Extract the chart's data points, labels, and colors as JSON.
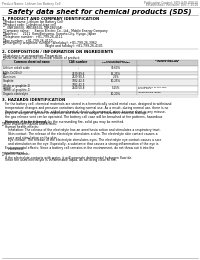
{
  "top_left_text": "Product Name: Lithium Ion Battery Cell",
  "top_right_line1": "Publication Control: SDS-048-00610",
  "top_right_line2": "Established / Revision: Dec.7.2016",
  "main_title": "Safety data sheet for chemical products (SDS)",
  "section1_title": "1. PRODUCT AND COMPANY IDENTIFICATION",
  "s1_items": [
    "・Product name: Lithium Ion Battery Cell",
    "・Product code: Cylindrical-type cell",
    "    (INR18650J, INR18650L, INR18650A)",
    "・Company name:     Sanyo Electric Co., Ltd., Mobile Energy Company",
    "・Address:     2221  Kamikoriyama, Sumoto-City, Hyogo, Japan",
    "・Telephone number:  +81-799-26-4111",
    "・Fax number:  +81-799-26-4120",
    "・Emergency telephone number (Weekday): +81-799-26-3962",
    "                                          (Night and holiday): +81-799-26-4101"
  ],
  "section2_title": "2. COMPOSITION / INFORMATION ON INGREDIENTS",
  "s2_intro": "・Substance or preparation: Preparation",
  "s2_sub": "・Information about the chemical nature of product:",
  "table_headers": [
    "Common chemical name",
    "CAS number",
    "Concentration /\nConcentration range",
    "Classification and\nhazard labeling"
  ],
  "table_rows": [
    [
      "Lithium cobalt oxide\n(LiMn-CoO2(s))",
      "-",
      "30-60%",
      "-"
    ],
    [
      "Iron",
      "7439-89-6",
      "15-25%",
      "-"
    ],
    [
      "Aluminum",
      "7429-90-5",
      "2-5%",
      "-"
    ],
    [
      "Graphite\n(Flake or graphite-1)\n(Artificial graphite-1)",
      "7782-42-5\n7782-42-5",
      "10-25%",
      "-"
    ],
    [
      "Copper",
      "7440-50-8",
      "5-15%",
      "Sensitization of the skin\ngroup No.2"
    ],
    [
      "Organic electrolyte",
      "-",
      "10-20%",
      "Inflammable liquid"
    ]
  ],
  "section3_title": "3. HAZARDS IDENTIFICATION",
  "s3_text1": "   For the battery cell, chemical materials are stored in a hermetically sealed metal case, designed to withstand\n   temperature changes and pressure variations during normal use. As a result, during normal use, there is no\n   physical danger of ignition or explosion and there is no danger of hazardous material leakage.",
  "s3_text2": "   However, if exposed to a fire, added mechanical shocks, decomposed, wires become short or any misuse,\n   the gas release vent can be operated. The battery cell case will be breached at fire patterns, hazardous\n   materials may be released.",
  "s3_text3": "   Moreover, if heated strongly by the surrounding fire, solid gas may be emitted.",
  "s3_most": "・Most important hazard and effects:",
  "s3_human": "   Human health effects:",
  "s3_inhalation": "      Inhalation: The release of the electrolyte has an anesthesia action and stimulates a respiratory tract.",
  "s3_skin": "      Skin contact: The release of the electrolyte stimulates a skin. The electrolyte skin contact causes a\n      sore and stimulation on the skin.",
  "s3_eye": "      Eye contact: The release of the electrolyte stimulates eyes. The electrolyte eye contact causes a sore\n      and stimulation on the eye. Especially, a substance that causes a strong inflammation of the eye is\n      contained.",
  "s3_env": "   Environmental effects: Since a battery cell remains in the environment, do not throw out it into the\n   environment.",
  "s3_specific": "・Specific hazards:",
  "s3_specific_detail1": "   If the electrolyte contacts with water, it will generate detrimental hydrogen fluoride.",
  "s3_specific_detail2": "   Since the used electrolyte is inflammable liquid, do not bring close to fire.",
  "bg_color": "#ffffff",
  "text_color": "#000000",
  "header_bg": "#cccccc",
  "alt_row_bg": "#eeeeee",
  "line_color": "#999999"
}
